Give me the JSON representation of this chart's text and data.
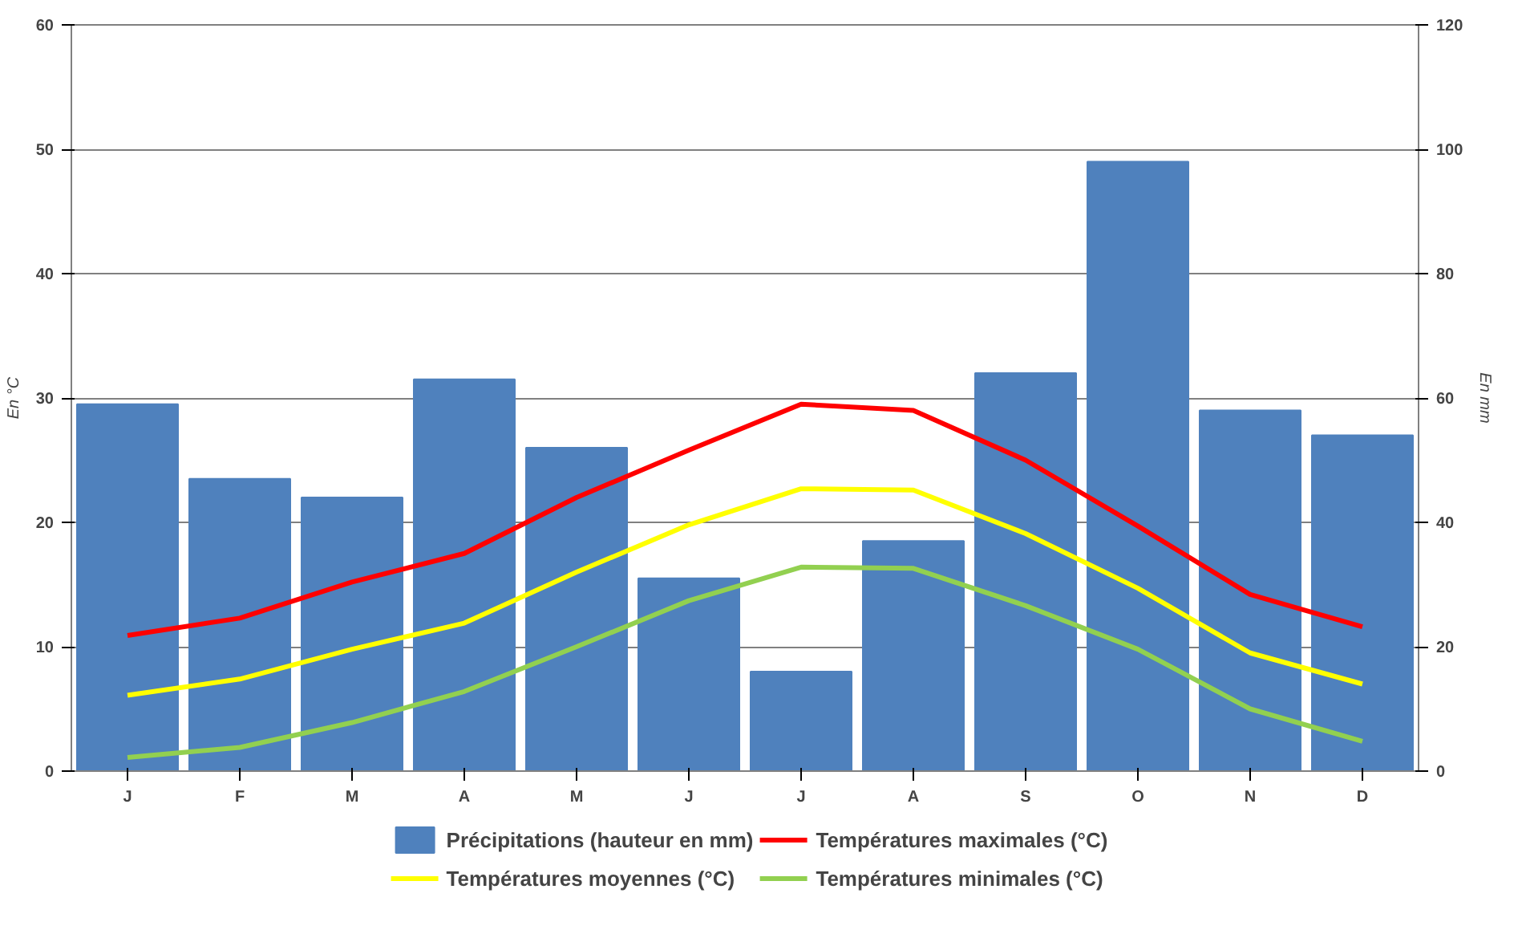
{
  "chart_data": {
    "type": "line",
    "ylabel": "En °C",
    "y2label": "En mm",
    "categories": [
      "J",
      "F",
      "M",
      "A",
      "M",
      "J",
      "J",
      "A",
      "S",
      "O",
      "N",
      "D"
    ],
    "ylim": [
      0,
      60
    ],
    "yticks": [
      0,
      10,
      20,
      30,
      40,
      50,
      60
    ],
    "y2lim": [
      0,
      120
    ],
    "y2ticks": [
      0,
      20,
      40,
      60,
      80,
      100,
      120
    ],
    "grid": "y",
    "legend": "bottom",
    "series": [
      {
        "name": "Précipitations (hauteur en mm)",
        "type": "bar",
        "axis": "y2",
        "color": "#4f81bd",
        "values": [
          59,
          47,
          44,
          63,
          52,
          31,
          16,
          37,
          64,
          98,
          58,
          54
        ]
      },
      {
        "name": "Températures maximales (°C)",
        "color": "#ff0000",
        "values": [
          10.9,
          12.3,
          15.2,
          17.5,
          22,
          25.8,
          29.5,
          29,
          25,
          19.7,
          14.2,
          11.6
        ]
      },
      {
        "name": "Températures moyennes (°C)",
        "color": "#ffff00",
        "values": [
          6.1,
          7.4,
          9.8,
          11.9,
          16,
          19.8,
          22.7,
          22.6,
          19.1,
          14.7,
          9.5,
          7
        ]
      },
      {
        "name": "Températures minimales (°C)",
        "color": "#92d050",
        "values": [
          1.1,
          1.9,
          3.9,
          6.4,
          10,
          13.7,
          16.4,
          16.3,
          13.3,
          9.8,
          5,
          2.4
        ]
      }
    ]
  }
}
